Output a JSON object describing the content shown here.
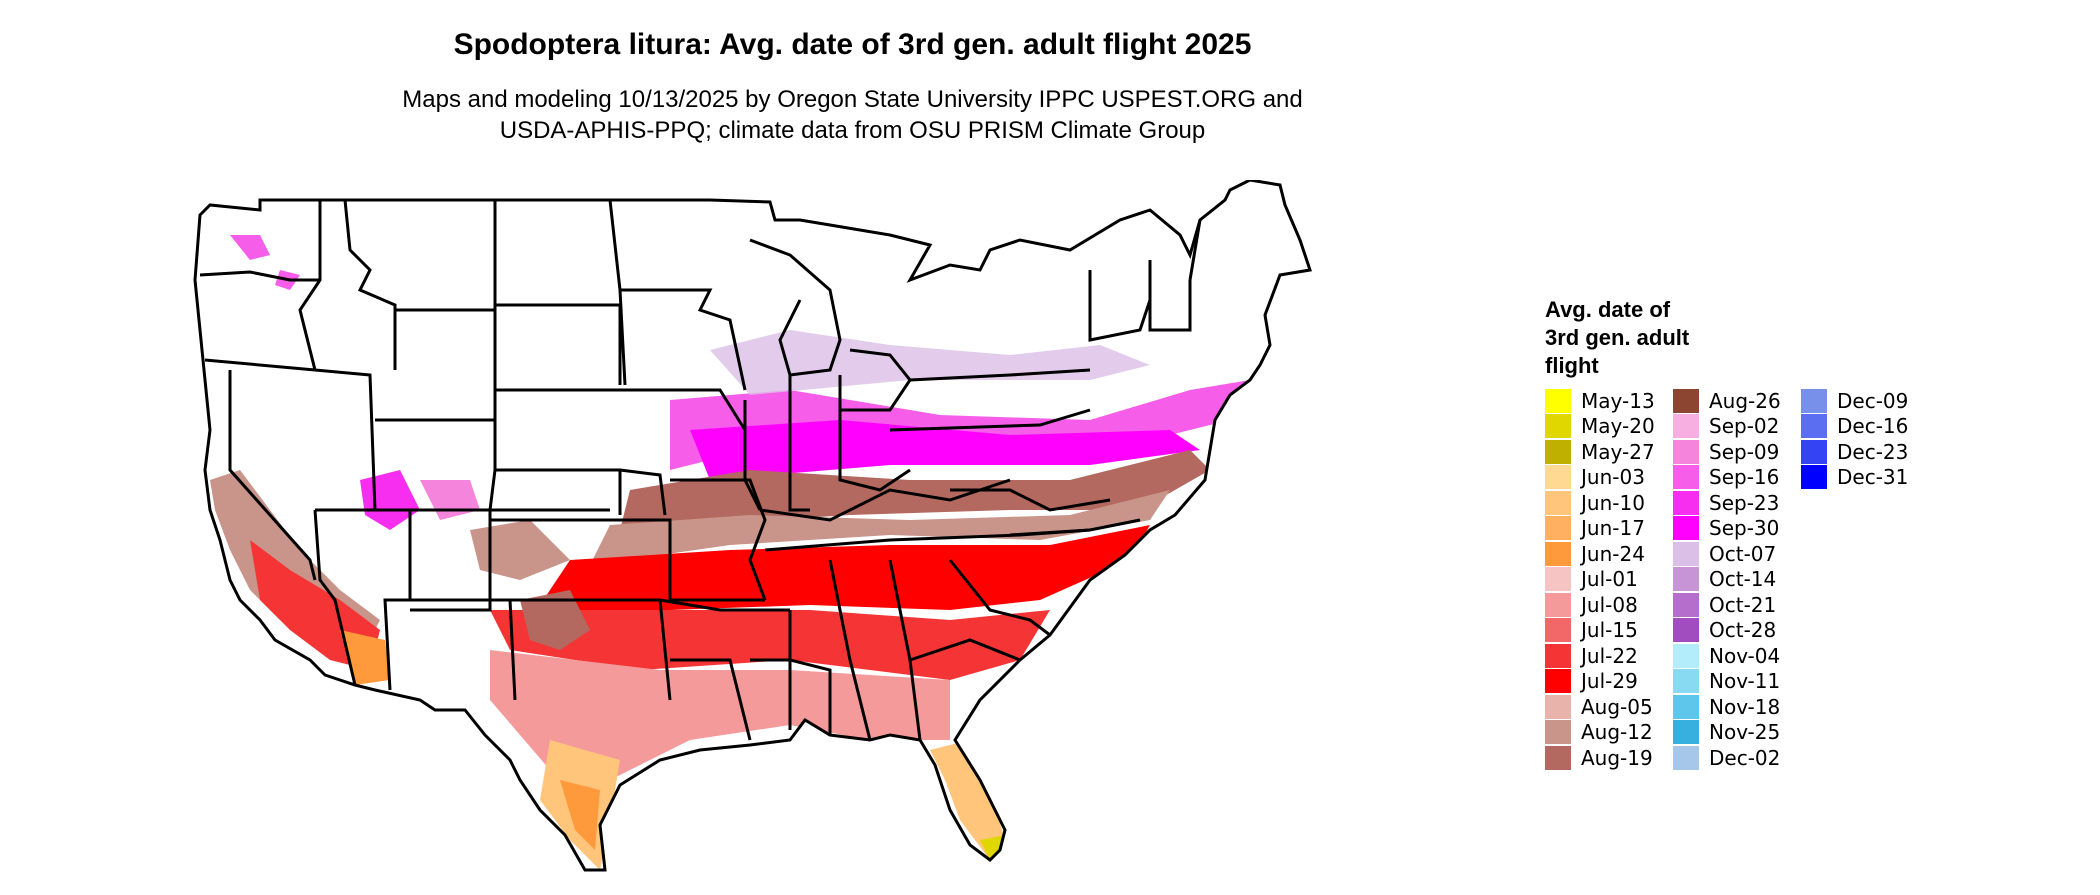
{
  "title": "Spodoptera litura: Avg. date of 3rd gen. adult flight 2025",
  "subtitle_line1": "Maps and modeling 10/13/2025 by Oregon State University IPPC USPEST.ORG and",
  "subtitle_line2": "USDA-APHIS-PPQ; climate data from OSU PRISM Climate Group",
  "legend": {
    "title_line1": "Avg. date of",
    "title_line2": "3rd gen. adult",
    "title_line3": "flight",
    "columns": [
      [
        {
          "label": "May-13",
          "color": "#ffff00"
        },
        {
          "label": "May-20",
          "color": "#e0d600"
        },
        {
          "label": "May-27",
          "color": "#bfb000"
        },
        {
          "label": "Jun-03",
          "color": "#ffd891"
        },
        {
          "label": "Jun-10",
          "color": "#ffc57a"
        },
        {
          "label": "Jun-17",
          "color": "#ffb060"
        },
        {
          "label": "Jun-24",
          "color": "#ff9a3c"
        },
        {
          "label": "Jul-01",
          "color": "#f7c4c4"
        },
        {
          "label": "Jul-08",
          "color": "#f49a9a"
        },
        {
          "label": "Jul-15",
          "color": "#f26868"
        },
        {
          "label": "Jul-22",
          "color": "#f53535"
        },
        {
          "label": "Jul-29",
          "color": "#ff0000"
        },
        {
          "label": "Aug-05",
          "color": "#e8b3ab"
        },
        {
          "label": "Aug-12",
          "color": "#c99489"
        },
        {
          "label": "Aug-19",
          "color": "#b3695f"
        }
      ],
      [
        {
          "label": "Aug-26",
          "color": "#8b4530"
        },
        {
          "label": "Sep-02",
          "color": "#f6afe0"
        },
        {
          "label": "Sep-09",
          "color": "#f585dc"
        },
        {
          "label": "Sep-16",
          "color": "#f65de9"
        },
        {
          "label": "Sep-23",
          "color": "#f72ef0"
        },
        {
          "label": "Sep-30",
          "color": "#ff00ff"
        },
        {
          "label": "Oct-07",
          "color": "#dcbfe6"
        },
        {
          "label": "Oct-14",
          "color": "#c795d6"
        },
        {
          "label": "Oct-21",
          "color": "#b56ecb"
        },
        {
          "label": "Oct-28",
          "color": "#a14dbf"
        },
        {
          "label": "Nov-04",
          "color": "#b3ecfa"
        },
        {
          "label": "Nov-11",
          "color": "#88daf2"
        },
        {
          "label": "Nov-18",
          "color": "#5ec6ea"
        },
        {
          "label": "Nov-25",
          "color": "#37b0e0"
        },
        {
          "label": "Dec-02",
          "color": "#a6c6ea"
        }
      ],
      [
        {
          "label": "Dec-09",
          "color": "#7890ea"
        },
        {
          "label": "Dec-16",
          "color": "#5b6df0"
        },
        {
          "label": "Dec-23",
          "color": "#3444f4"
        },
        {
          "label": "Dec-31",
          "color": "#0000ff"
        }
      ]
    ]
  }
}
